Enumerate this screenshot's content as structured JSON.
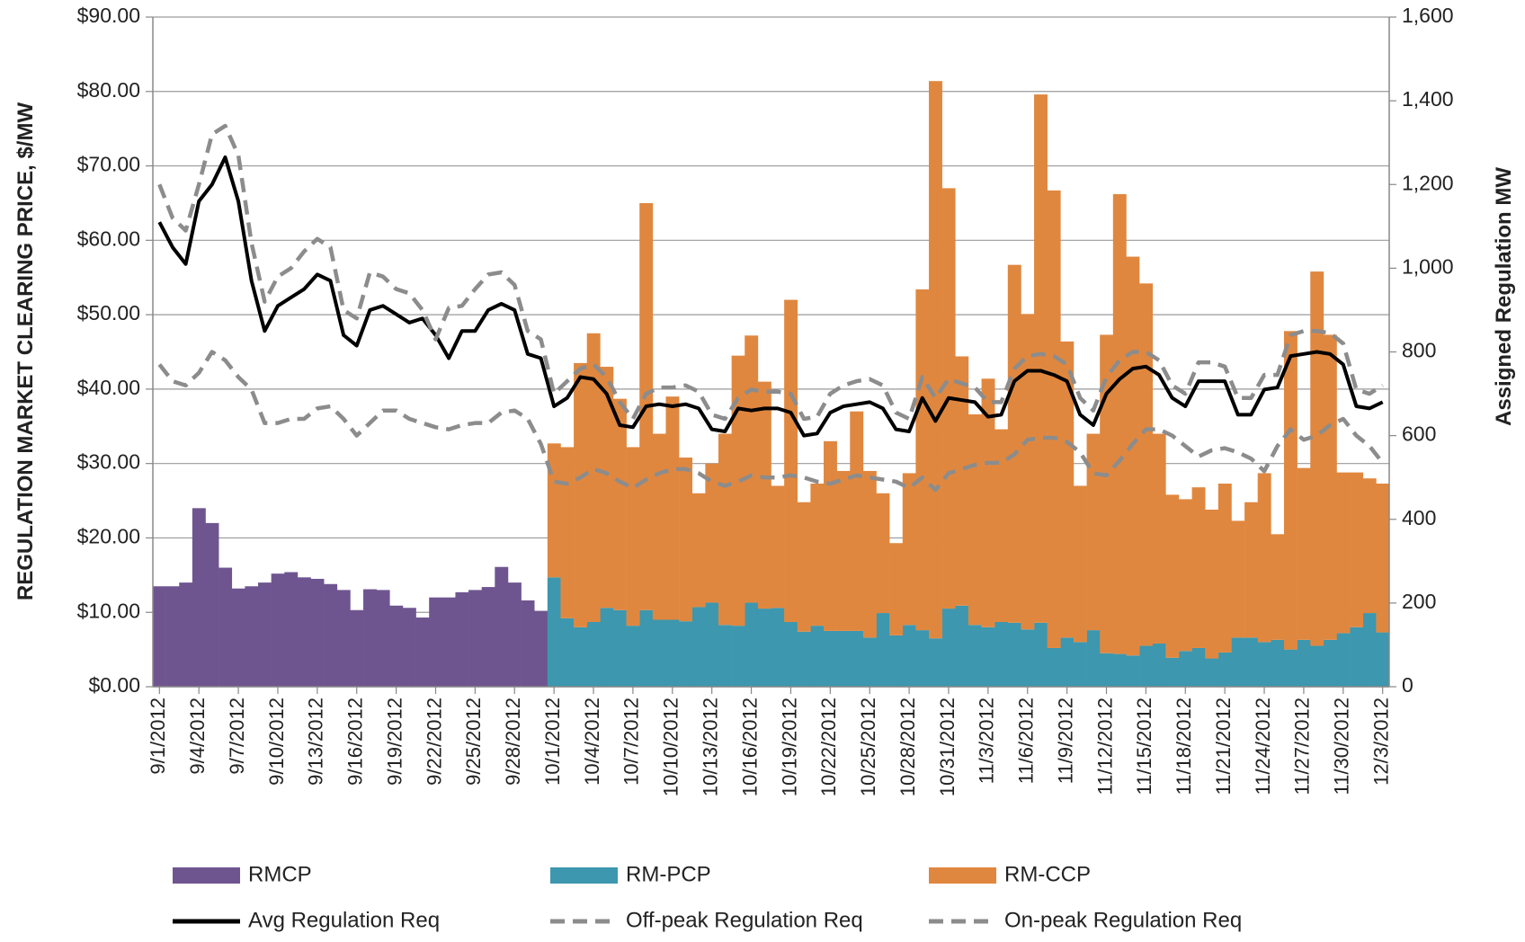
{
  "chart_data": {
    "type": "combo",
    "y_label": "REGULATION MARKET CLEARING PRICE, $/MW",
    "y2_label": "Assigned Regulation MW",
    "stacked": true,
    "grid": true,
    "categories": [
      "9/1/2012",
      null,
      null,
      "9/4/2012",
      null,
      null,
      "9/7/2012",
      null,
      null,
      "9/10/2012",
      null,
      null,
      "9/13/2012",
      null,
      null,
      "9/16/2012",
      null,
      null,
      "9/19/2012",
      null,
      null,
      "9/22/2012",
      null,
      null,
      "9/25/2012",
      null,
      null,
      "9/28/2012",
      null,
      null,
      "10/1/2012",
      null,
      null,
      "10/4/2012",
      null,
      null,
      "10/7/2012",
      null,
      null,
      "10/10/2012",
      null,
      null,
      "10/13/2012",
      null,
      null,
      "10/16/2012",
      null,
      null,
      "10/19/2012",
      null,
      null,
      "10/22/2012",
      null,
      null,
      "10/25/2012",
      null,
      null,
      "10/28/2012",
      null,
      null,
      "10/31/2012",
      null,
      null,
      "11/3/2012",
      null,
      null,
      "11/6/2012",
      null,
      null,
      "11/9/2012",
      null,
      null,
      "11/12/2012",
      null,
      null,
      "11/15/2012",
      null,
      null,
      "11/18/2012",
      null,
      null,
      "11/21/2012",
      null,
      null,
      "11/24/2012",
      null,
      null,
      "11/27/2012",
      null,
      null,
      "11/30/2012",
      null,
      null,
      "12/3/2012"
    ],
    "ylim": [
      0,
      90
    ],
    "yticks": [
      {
        "value": 0,
        "label": "$0.00"
      },
      {
        "value": 10,
        "label": "$10.00"
      },
      {
        "value": 20,
        "label": "$20.00"
      },
      {
        "value": 30,
        "label": "$30.00"
      },
      {
        "value": 40,
        "label": "$40.00"
      },
      {
        "value": 50,
        "label": "$50.00"
      },
      {
        "value": 60,
        "label": "$60.00"
      },
      {
        "value": 70,
        "label": "$70.00"
      },
      {
        "value": 80,
        "label": "$80.00"
      },
      {
        "value": 90,
        "label": "$90.00"
      }
    ],
    "y2lim": [
      0,
      1600
    ],
    "y2ticks": [
      0,
      200,
      400,
      600,
      800,
      {
        "value": 1000,
        "label": "1,000"
      },
      {
        "value": 1200,
        "label": "1,200"
      },
      {
        "value": 1400,
        "label": "1,400"
      },
      {
        "value": 1600,
        "label": "1,600"
      }
    ],
    "series": [
      {
        "name": "RMCP",
        "type": "bar",
        "color": "#6f5590",
        "values": [
          13.5,
          13.5,
          14,
          24,
          22,
          16,
          13.2,
          13.5,
          14,
          15.2,
          15.4,
          14.7,
          14.5,
          13.8,
          13,
          10.3,
          13.1,
          13,
          10.9,
          10.6,
          9.3,
          12,
          12,
          12.7,
          13,
          13.4,
          16.1,
          14,
          11.6,
          10.2,
          null,
          null,
          null,
          null,
          null,
          null,
          null,
          null,
          null,
          null,
          null,
          null,
          null,
          null,
          null,
          null,
          null,
          null,
          null,
          null,
          null,
          null,
          null,
          null,
          null,
          null,
          null,
          null,
          null,
          null,
          null,
          null,
          null,
          null,
          null,
          null,
          null,
          null,
          null,
          null,
          null,
          null,
          null,
          null,
          null,
          null,
          null,
          null,
          null,
          null,
          null,
          null,
          null,
          null,
          null,
          null,
          null,
          null,
          null,
          null,
          null,
          null,
          null,
          null
        ]
      },
      {
        "name": "RM-PCP",
        "type": "bar",
        "color": "#3d97ae",
        "values": [
          null,
          null,
          null,
          null,
          null,
          null,
          null,
          null,
          null,
          null,
          null,
          null,
          null,
          null,
          null,
          null,
          null,
          null,
          null,
          null,
          null,
          null,
          null,
          null,
          null,
          null,
          null,
          null,
          null,
          null,
          14.7,
          9.2,
          8,
          8.7,
          10.6,
          10.3,
          8.2,
          10.3,
          9,
          9,
          8.8,
          10.7,
          11.3,
          8.3,
          8.2,
          11.3,
          10.5,
          10.6,
          8.7,
          7.4,
          8.2,
          7.5,
          7.5,
          7.5,
          6.6,
          9.9,
          6.9,
          8.3,
          7.6,
          6.5,
          10.5,
          10.9,
          8.3,
          8,
          8.7,
          8.6,
          7.7,
          8.6,
          5.2,
          6.6,
          6,
          7.6,
          4.5,
          4.4,
          4.2,
          5.5,
          5.8,
          3.9,
          4.8,
          5.2,
          3.8,
          4.6,
          6.6,
          6.6,
          6,
          6.3,
          5,
          6.3,
          5.5,
          6.3,
          7.2,
          8,
          9.9,
          7.3
        ]
      },
      {
        "name": "RM-CCP",
        "type": "bar",
        "color": "#e0873f",
        "values": [
          null,
          null,
          null,
          null,
          null,
          null,
          null,
          null,
          null,
          null,
          null,
          null,
          null,
          null,
          null,
          null,
          null,
          null,
          null,
          null,
          null,
          null,
          null,
          null,
          null,
          null,
          null,
          null,
          null,
          null,
          18,
          23,
          35.5,
          38.8,
          32.4,
          28.4,
          24,
          54.7,
          25,
          30,
          22,
          15.3,
          18.7,
          25.7,
          36.3,
          35.9,
          30.5,
          16.4,
          43.3,
          17.4,
          19.1,
          25.5,
          21.5,
          29.5,
          22.4,
          16.1,
          12.4,
          20.4,
          45.8,
          74.9,
          56.5,
          33.5,
          28.3,
          33.4,
          25.9,
          48.1,
          42.4,
          71,
          61.5,
          39.8,
          21,
          26.4,
          42.8,
          61.8,
          53.6,
          48.7,
          28.2,
          21.9,
          20.4,
          21.6,
          20,
          22.7,
          15.7,
          18.2,
          22.7,
          14.2,
          42.8,
          23.1,
          50.3,
          41,
          21.6,
          20.8,
          18.1,
          20
        ]
      },
      {
        "name": "Avg Regulation Req",
        "type": "line",
        "axis": "y2",
        "color": "#000000",
        "dashed": false,
        "values": [
          1110,
          1050,
          1010,
          1160,
          1200,
          1265,
          1160,
          970,
          850,
          910,
          930,
          950,
          985,
          970,
          840,
          815,
          900,
          910,
          890,
          870,
          880,
          840,
          785,
          850,
          850,
          900,
          915,
          900,
          795,
          785,
          670,
          690,
          740,
          735,
          700,
          625,
          620,
          670,
          675,
          670,
          675,
          665,
          615,
          610,
          665,
          660,
          665,
          665,
          655,
          600,
          605,
          655,
          670,
          675,
          680,
          665,
          615,
          610,
          690,
          635,
          690,
          685,
          680,
          645,
          650,
          730,
          755,
          755,
          745,
          730,
          650,
          625,
          700,
          735,
          760,
          765,
          745,
          690,
          670,
          730,
          730,
          730,
          650,
          650,
          710,
          715,
          790,
          795,
          800,
          795,
          770,
          670,
          665,
          680
        ]
      },
      {
        "name": "Off-peak Regulation Req",
        "type": "line",
        "axis": "y2",
        "color": "#8c8c8c",
        "dashed": true,
        "values": [
          1200,
          1120,
          1090,
          1200,
          1320,
          1340,
          1270,
          1060,
          920,
          980,
          1000,
          1040,
          1070,
          1050,
          900,
          880,
          990,
          980,
          950,
          940,
          900,
          830,
          905,
          910,
          950,
          985,
          990,
          960,
          850,
          830,
          700,
          730,
          760,
          770,
          740,
          680,
          640,
          700,
          715,
          715,
          720,
          705,
          650,
          640,
          690,
          710,
          705,
          705,
          700,
          640,
          645,
          700,
          720,
          730,
          735,
          720,
          655,
          640,
          740,
          690,
          735,
          725,
          715,
          680,
          680,
          760,
          790,
          795,
          790,
          770,
          690,
          660,
          740,
          780,
          800,
          800,
          780,
          720,
          700,
          775,
          775,
          765,
          690,
          690,
          745,
          745,
          840,
          850,
          850,
          845,
          820,
          710,
          700,
          720
        ]
      },
      {
        "name": "On-peak Regulation Req",
        "type": "line",
        "axis": "y2",
        "color": "#8c8c8c",
        "dashed": true,
        "values": [
          770,
          730,
          720,
          750,
          800,
          780,
          740,
          710,
          630,
          630,
          640,
          640,
          665,
          670,
          640,
          600,
          630,
          660,
          660,
          640,
          630,
          620,
          615,
          625,
          630,
          630,
          655,
          660,
          640,
          580,
          490,
          485,
          500,
          520,
          510,
          490,
          475,
          495,
          510,
          520,
          520,
          510,
          490,
          480,
          490,
          505,
          500,
          500,
          505,
          500,
          490,
          485,
          495,
          505,
          500,
          495,
          490,
          475,
          500,
          470,
          510,
          520,
          530,
          535,
          535,
          555,
          590,
          595,
          595,
          585,
          560,
          510,
          505,
          540,
          580,
          615,
          615,
          600,
          575,
          550,
          565,
          570,
          560,
          545,
          515,
          575,
          615,
          590,
          600,
          625,
          640,
          600,
          575,
          535
        ]
      }
    ]
  }
}
